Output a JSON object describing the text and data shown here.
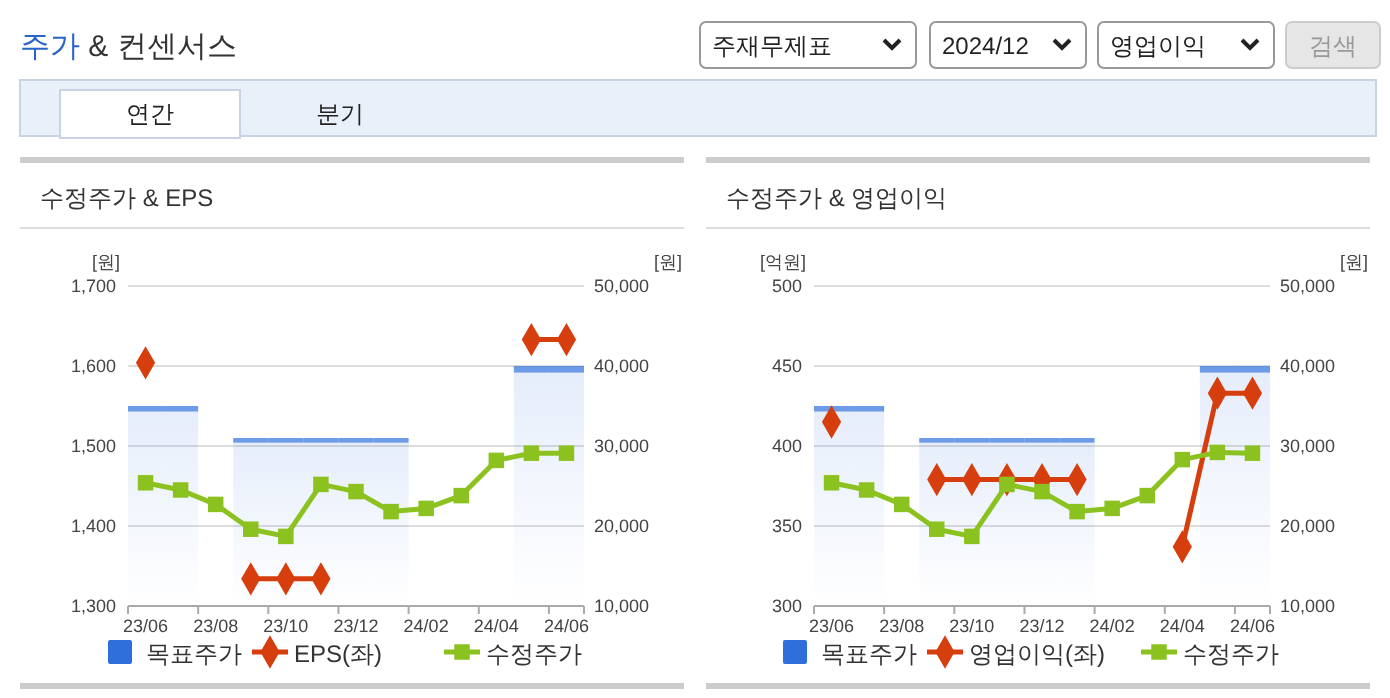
{
  "chart_data": [
    {
      "type": "other",
      "title": "주가 & 컨센서스",
      "annotations": [
        "주재무제표",
        "2024/12",
        "영업이익",
        "검색",
        "연간",
        "분기"
      ]
    },
    {
      "type": "line",
      "title": "수정주가 & EPS",
      "ylabel": "[원]",
      "y2label": "[원]",
      "categories": [
        "23/06",
        null,
        "23/08",
        null,
        "23/10",
        null,
        "23/12",
        null,
        "24/02",
        null,
        "24/04",
        null,
        "24/06"
      ],
      "ylim": [
        1300,
        1700
      ],
      "yticks": [
        {
          "value": 1300,
          "label": "1,300"
        },
        {
          "value": 1400,
          "label": "1,400"
        },
        {
          "value": 1500,
          "label": "1,500"
        },
        {
          "value": 1600,
          "label": "1,600"
        },
        {
          "value": 1700,
          "label": "1,700"
        }
      ],
      "y2lim": [
        10000,
        50000
      ],
      "y2ticks": [
        {
          "value": 10000,
          "label": "10,000"
        },
        {
          "value": 20000,
          "label": "20,000"
        },
        {
          "value": 30000,
          "label": "30,000"
        },
        {
          "value": 40000,
          "label": "40,000"
        },
        {
          "value": 50000,
          "label": "50,000"
        }
      ],
      "grid": "y",
      "legend": "bottom",
      "series": [
        {
          "name": "목표주가",
          "type": "bar",
          "axis": "y2",
          "color": "#2f6fdc",
          "values": [
            35000,
            35000,
            null,
            31000,
            31000,
            31000,
            31000,
            31000,
            null,
            null,
            null,
            40000,
            40000
          ]
        },
        {
          "name": "EPS(좌)",
          "type": "line",
          "axis": "y",
          "marker": "diamond",
          "color": "#d63e0e",
          "values": [
            1604,
            null,
            null,
            1334,
            1334,
            1334,
            null,
            null,
            null,
            null,
            null,
            1633,
            1633
          ]
        },
        {
          "name": "수정주가",
          "type": "line",
          "axis": "y2",
          "marker": "square",
          "color": "#8cc21f",
          "values": [
            25400,
            24500,
            22700,
            19600,
            18700,
            25200,
            24300,
            21800,
            22200,
            23800,
            28200,
            29100,
            29100
          ]
        }
      ]
    },
    {
      "type": "line",
      "title": "수정주가 & 영업이익",
      "ylabel": "[억원]",
      "y2label": "[원]",
      "categories": [
        "23/06",
        null,
        "23/08",
        null,
        "23/10",
        null,
        "23/12",
        null,
        "24/02",
        null,
        "24/04",
        null,
        "24/06"
      ],
      "ylim": [
        300,
        500
      ],
      "yticks": [
        300,
        350,
        400,
        450,
        500
      ],
      "y2lim": [
        10000,
        50000
      ],
      "y2ticks": [
        {
          "value": 10000,
          "label": "10,000"
        },
        {
          "value": 20000,
          "label": "20,000"
        },
        {
          "value": 30000,
          "label": "30,000"
        },
        {
          "value": 40000,
          "label": "40,000"
        },
        {
          "value": 50000,
          "label": "50,000"
        }
      ],
      "grid": "y",
      "legend": "bottom",
      "series": [
        {
          "name": "목표주가",
          "type": "bar",
          "axis": "y2",
          "color": "#2f6fdc",
          "values": [
            35000,
            35000,
            null,
            31000,
            31000,
            31000,
            31000,
            31000,
            null,
            null,
            null,
            40000,
            40000
          ]
        },
        {
          "name": "영업이익(좌)",
          "type": "line",
          "axis": "y",
          "marker": "diamond",
          "color": "#d63e0e",
          "values": [
            415,
            null,
            null,
            379,
            379,
            379,
            379,
            379,
            null,
            null,
            337,
            433,
            433
          ]
        },
        {
          "name": "수정주가",
          "type": "line",
          "axis": "y2",
          "marker": "square",
          "color": "#8cc21f",
          "values": [
            25400,
            24500,
            22700,
            19600,
            18700,
            25200,
            24300,
            21800,
            22200,
            23800,
            28300,
            29200,
            29100
          ]
        }
      ]
    }
  ]
}
